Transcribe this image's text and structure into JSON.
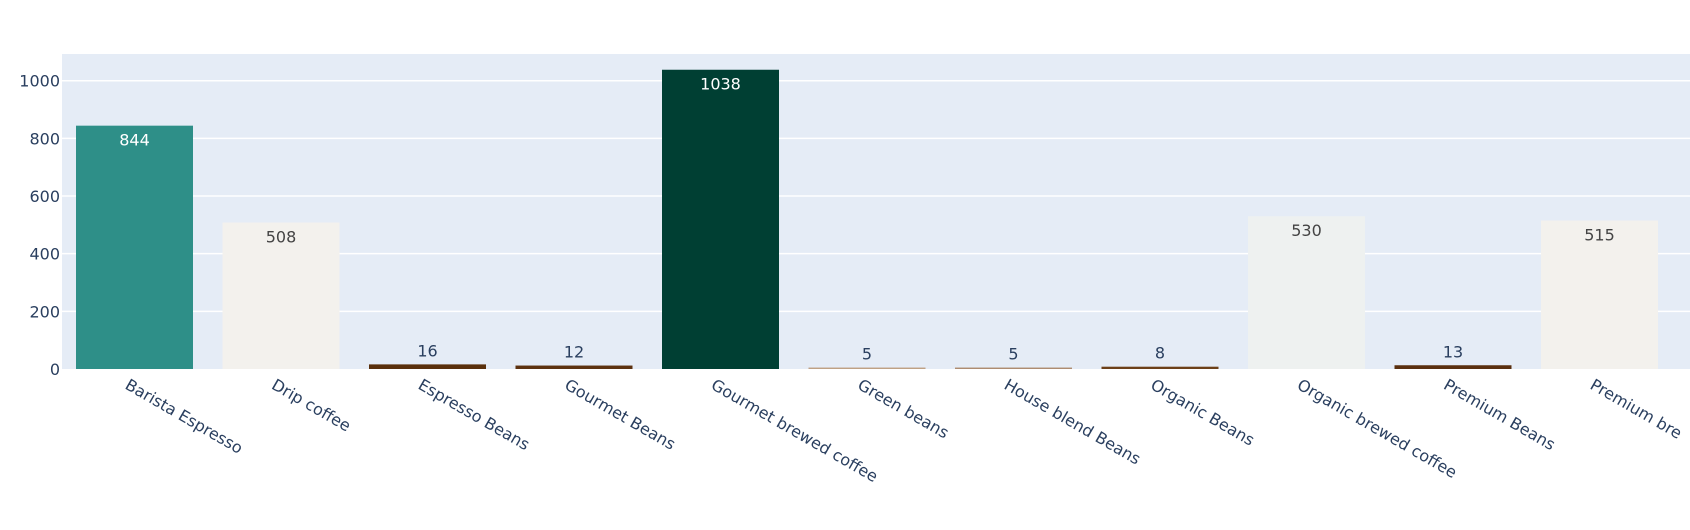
{
  "chart_data": {
    "type": "bar",
    "title": "",
    "xlabel": "",
    "ylabel": "",
    "categories": [
      "Barista Espresso",
      "Drip coffee",
      "Espresso Beans",
      "Gourmet Beans",
      "Gourmet brewed coffee",
      "Green beans",
      "House blend Beans",
      "Organic Beans",
      "Organic brewed coffee",
      "Premium Beans",
      "Premium brewed coffee"
    ],
    "visible_category_labels": [
      "Barista Espresso",
      "Drip coffee",
      "Espresso Beans",
      "Gourmet Beans",
      "Gourmet brewed coffee",
      "Green beans",
      "House blend Beans",
      "Organic Beans",
      "Organic brewed coffee",
      "Premium Beans",
      "Premium bre"
    ],
    "values": [
      844,
      508,
      16,
      12,
      1038,
      5,
      5,
      8,
      530,
      13,
      515
    ],
    "data_labels": [
      "844",
      "508",
      "16",
      "12",
      "1038",
      "5",
      "5",
      "8",
      "530",
      "13",
      "515"
    ],
    "bar_colors": [
      "#2e8f88",
      "#f3f1ed",
      "#5a300c",
      "#5d3210",
      "#003f33",
      "#bfa184",
      "#ae8c71",
      "#6c4019",
      "#eef1f0",
      "#5a2f0f",
      "#f3f1ed"
    ],
    "yticks": [
      0,
      200,
      400,
      600,
      800,
      1000
    ],
    "ytick_labels": [
      "0",
      "200",
      "400",
      "600",
      "800",
      "1000"
    ],
    "ylim": [
      0,
      1092.6
    ],
    "grid": true,
    "plot_bg": "#e5ecf6",
    "grid_color": "#ffffff",
    "tick_label_color": "#2a3f5f",
    "bar_label_inside_dark_color": "#ffffff",
    "bar_label_inside_light_color": "#444444",
    "bar_label_outside_color": "#2a3f5f"
  }
}
